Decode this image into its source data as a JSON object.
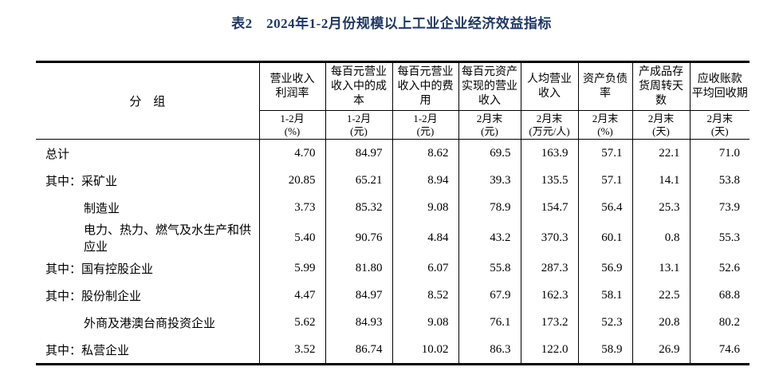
{
  "page": {
    "title": "表2　2024年1-2月份规模以上工业企业经济效益指标"
  },
  "table": {
    "group_header": "分　组",
    "columns": [
      {
        "name": "营业收入\n利润率",
        "period": "1-2月",
        "unit": "(%)"
      },
      {
        "name": "每百元营业\n收入中的成\n本",
        "period": "1-2月",
        "unit": "(元)"
      },
      {
        "name": "每百元营业\n收入中的费\n用",
        "period": "1-2月",
        "unit": "(元)"
      },
      {
        "name": "每百元资产\n实现的营业\n收入",
        "period": "2月末",
        "unit": "(元)"
      },
      {
        "name": "人均营业\n收入",
        "period": "2月末",
        "unit": "(万元/人)"
      },
      {
        "name": "资产负债\n率",
        "period": "2月末",
        "unit": "(%)"
      },
      {
        "name": "产成品存\n货周转天\n数",
        "period": "2月末",
        "unit": "(天)"
      },
      {
        "name": "应收账款\n平均回收期",
        "period": "2月末",
        "unit": "(天)"
      }
    ],
    "rows": [
      {
        "label": "总计",
        "indent": 0,
        "values": [
          "4.70",
          "84.97",
          "8.62",
          "69.5",
          "163.9",
          "57.1",
          "22.1",
          "71.0"
        ]
      },
      {
        "label": "其中：采矿业",
        "indent": 0,
        "values": [
          "20.85",
          "65.21",
          "8.94",
          "39.3",
          "135.5",
          "57.1",
          "14.1",
          "53.8"
        ]
      },
      {
        "label": "制造业",
        "indent": 1,
        "values": [
          "3.73",
          "85.32",
          "9.08",
          "78.9",
          "154.7",
          "56.4",
          "25.3",
          "73.9"
        ]
      },
      {
        "label": "电力、热力、燃气及水生产和供应业",
        "indent": 1,
        "values": [
          "5.40",
          "90.76",
          "4.84",
          "43.2",
          "370.3",
          "60.1",
          "0.8",
          "55.3"
        ]
      },
      {
        "label": "其中：国有控股企业",
        "indent": 0,
        "values": [
          "5.99",
          "81.80",
          "6.07",
          "55.8",
          "287.3",
          "56.9",
          "13.1",
          "52.6"
        ]
      },
      {
        "label": "其中：股份制企业",
        "indent": 0,
        "values": [
          "4.47",
          "84.97",
          "8.52",
          "67.9",
          "162.3",
          "58.1",
          "22.5",
          "68.8"
        ]
      },
      {
        "label": "外商及港澳台商投资企业",
        "indent": 1,
        "values": [
          "5.62",
          "84.93",
          "9.08",
          "76.1",
          "173.2",
          "52.3",
          "20.8",
          "80.2"
        ]
      },
      {
        "label": "其中：私营企业",
        "indent": 0,
        "values": [
          "3.52",
          "86.74",
          "10.02",
          "86.3",
          "122.0",
          "58.9",
          "26.9",
          "74.6"
        ]
      }
    ]
  }
}
